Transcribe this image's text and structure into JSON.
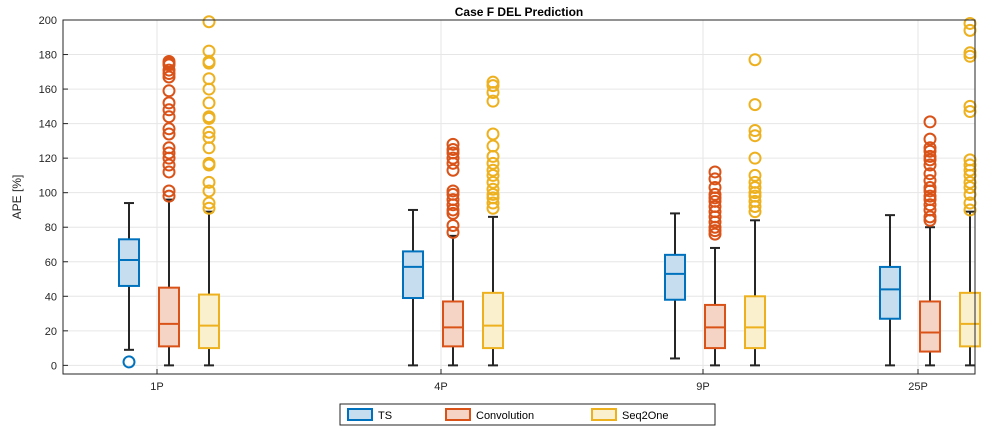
{
  "chart_data": {
    "type": "boxplot",
    "title": "Case F DEL Prediction",
    "xlabel": "",
    "ylabel": "APE [%]",
    "ylim": [
      -5,
      200
    ],
    "yticks": [
      0,
      20,
      40,
      60,
      80,
      100,
      120,
      140,
      160,
      180,
      200
    ],
    "grid": true,
    "legend_position": "bottom",
    "categories": [
      "1P",
      "4P",
      "9P",
      "25P"
    ],
    "series": [
      {
        "name": "TS",
        "color": "#0072BD",
        "fill": "#C6DDF0",
        "boxes": [
          {
            "whisker_low": 9,
            "q1": 46,
            "median": 61,
            "q3": 73,
            "whisker_high": 94,
            "outliers": [
              2
            ]
          },
          {
            "whisker_low": 0,
            "q1": 39,
            "median": 57,
            "q3": 66,
            "whisker_high": 90,
            "outliers": []
          },
          {
            "whisker_low": 4,
            "q1": 38,
            "median": 53,
            "q3": 64,
            "whisker_high": 88,
            "outliers": []
          },
          {
            "whisker_low": 0,
            "q1": 27,
            "median": 44,
            "q3": 57,
            "whisker_high": 87,
            "outliers": []
          }
        ]
      },
      {
        "name": "Convolution",
        "color": "#D95319",
        "fill": "#F6D4C5",
        "boxes": [
          {
            "whisker_low": 0,
            "q1": 11,
            "median": 24,
            "q3": 45,
            "whisker_high": 96,
            "outliers": [
              98,
              101,
              112,
              116,
              120,
              123,
              126,
              134,
              137,
              144,
              148,
              152,
              159,
              167,
              169,
              171,
              174,
              175,
              176
            ]
          },
          {
            "whisker_low": 0,
            "q1": 11,
            "median": 22,
            "q3": 37,
            "whisker_high": 75,
            "outliers": [
              77,
              81,
              88,
              90,
              93,
              96,
              99,
              101,
              113,
              117,
              120,
              123,
              125,
              128
            ]
          },
          {
            "whisker_low": 0,
            "q1": 10,
            "median": 22,
            "q3": 35,
            "whisker_high": 68,
            "outliers": [
              76,
              78,
              80,
              83,
              86,
              89,
              92,
              95,
              97,
              99,
              103,
              108,
              112
            ]
          },
          {
            "whisker_low": 0,
            "q1": 8,
            "median": 19,
            "q3": 37,
            "whisker_high": 80,
            "outliers": [
              84,
              86,
              90,
              93,
              96,
              98,
              101,
              103,
              107,
              111,
              116,
              119,
              121,
              124,
              126,
              131,
              141
            ]
          }
        ]
      },
      {
        "name": "Seq2One",
        "color": "#EDB120",
        "fill": "#FBF0CD",
        "boxes": [
          {
            "whisker_low": 0,
            "q1": 10,
            "median": 23,
            "q3": 41,
            "whisker_high": 89,
            "outliers": [
              91,
              94,
              101,
              106,
              116,
              117,
              126,
              132,
              135,
              143,
              144,
              152,
              160,
              166,
              175,
              176,
              182,
              199
            ]
          },
          {
            "whisker_low": 0,
            "q1": 10,
            "median": 23,
            "q3": 42,
            "whisker_high": 86,
            "outliers": [
              91,
              94,
              97,
              99,
              102,
              106,
              110,
              113,
              117,
              121,
              127,
              134,
              153,
              158,
              162,
              164
            ]
          },
          {
            "whisker_low": 0,
            "q1": 10,
            "median": 22,
            "q3": 40,
            "whisker_high": 84,
            "outliers": [
              89,
              92,
              95,
              98,
              100,
              103,
              106,
              110,
              120,
              133,
              136,
              151,
              177
            ]
          },
          {
            "whisker_low": 0,
            "q1": 11,
            "median": 24,
            "q3": 42,
            "whisker_high": 89,
            "outliers": [
              90,
              94,
              99,
              103,
              106,
              110,
              113,
              116,
              119,
              147,
              150,
              179,
              181,
              194,
              198
            ]
          }
        ]
      }
    ]
  }
}
